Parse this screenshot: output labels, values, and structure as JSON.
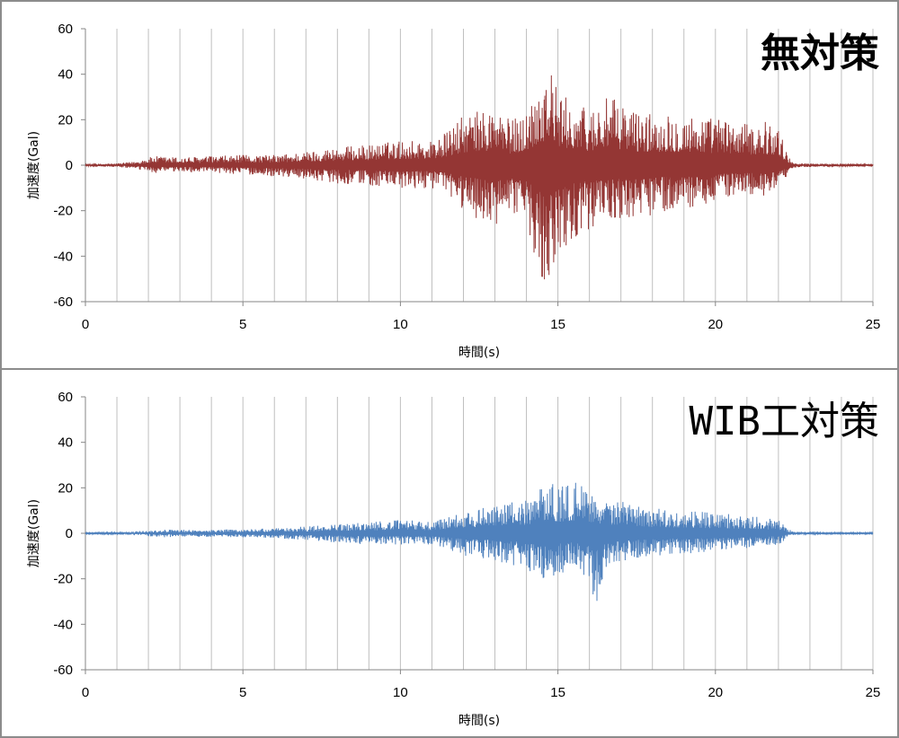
{
  "chart_data": [
    {
      "type": "line",
      "title": "無対策",
      "xlabel": "時間(s)",
      "ylabel": "加速度(Gal)",
      "xlim": [
        0,
        25
      ],
      "ylim": [
        -60,
        60
      ],
      "xticks": [
        0,
        5,
        10,
        15,
        20,
        25
      ],
      "yticks": [
        60,
        40,
        20,
        0,
        -20,
        -40,
        -60
      ],
      "grid": "vertical",
      "line_color": "#943634",
      "series": [
        {
          "envelope": {
            "x": [
              0,
              1,
              1.5,
              2.2,
              3,
              4,
              5,
              6,
              7,
              8,
              9,
              10,
              11,
              11.5,
              12,
              12.5,
              13,
              13.5,
              14,
              14.5,
              14.8,
              15,
              15.5,
              16,
              16.5,
              17,
              17.5,
              18,
              18.5,
              19,
              19.5,
              20,
              20.5,
              21,
              21.5,
              22,
              22.3,
              22.5,
              23,
              24,
              25
            ],
            "upper": [
              0.5,
              0.8,
              1.5,
              4,
              3.5,
              4,
              4.5,
              4.5,
              6,
              8,
              9,
              11,
              11,
              15,
              22,
              24,
              26,
              20,
              24,
              42,
              43,
              32,
              28,
              25,
              30,
              28,
              24,
              23,
              24,
              22,
              22,
              21,
              20,
              18,
              20,
              17,
              4,
              1,
              0.8,
              0.5,
              0.5
            ],
            "lower": [
              -0.5,
              -0.8,
              -1.5,
              -3.5,
              -3,
              -3.5,
              -4,
              -5,
              -6,
              -8,
              -9,
              -11,
              -10,
              -14,
              -20,
              -24,
              -30,
              -20,
              -28,
              -50,
              -51,
              -40,
              -32,
              -28,
              -24,
              -24,
              -25,
              -22,
              -20,
              -20,
              -18,
              -16,
              -14,
              -13,
              -14,
              -12,
              -4,
              -1,
              -0.8,
              -0.5,
              -0.5
            ]
          }
        }
      ]
    },
    {
      "type": "line",
      "title": "WIB工対策",
      "xlabel": "時間(s)",
      "ylabel": "加速度(Gal)",
      "xlim": [
        0,
        25
      ],
      "ylim": [
        -60,
        60
      ],
      "xticks": [
        0,
        5,
        10,
        15,
        20,
        25
      ],
      "yticks": [
        60,
        40,
        20,
        0,
        -20,
        -40,
        -60
      ],
      "grid": "vertical",
      "line_color": "#4f81bd",
      "series": [
        {
          "envelope": {
            "x": [
              0,
              1,
              1.5,
              2.5,
              3,
              4,
              5,
              6,
              7,
              8,
              9,
              10,
              11,
              11.5,
              12,
              12.5,
              13,
              13.5,
              14,
              14.5,
              14.8,
              15,
              15.5,
              15.8,
              16,
              16.2,
              16.5,
              17,
              18,
              19,
              20,
              21,
              22,
              22.3,
              22.5,
              23,
              24,
              25
            ],
            "upper": [
              0.3,
              0.4,
              0.8,
              1.8,
              1.5,
              1.6,
              1.8,
              2.2,
              3,
              4,
              5,
              6,
              5,
              8,
              10,
              11,
              12,
              14,
              15,
              22,
              24,
              20,
              22,
              26,
              20,
              19,
              15,
              14,
              11,
              10,
              9,
              8,
              6,
              2,
              0.6,
              0.4,
              0.3,
              0.3
            ],
            "lower": [
              -0.3,
              -0.4,
              -0.8,
              -1.8,
              -1.5,
              -1.6,
              -1.8,
              -2.2,
              -3,
              -4,
              -5,
              -5,
              -5,
              -7,
              -10,
              -11,
              -12,
              -14,
              -16,
              -24,
              -20,
              -18,
              -16,
              -20,
              -23,
              -32,
              -16,
              -13,
              -10,
              -9,
              -8,
              -7,
              -5,
              -2,
              -0.6,
              -0.4,
              -0.3,
              -0.3
            ]
          }
        }
      ]
    }
  ]
}
